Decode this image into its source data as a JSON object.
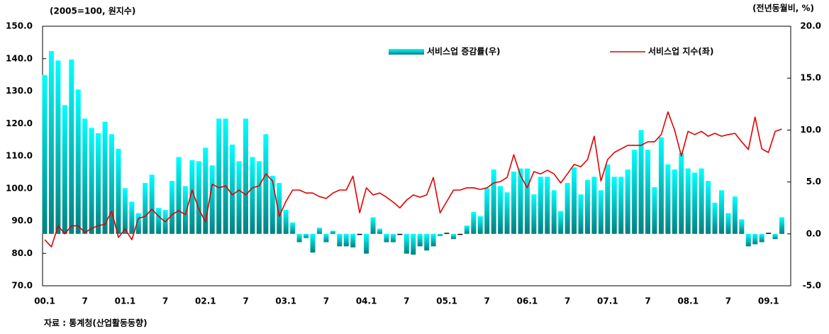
{
  "chart_data": {
    "type": "combo",
    "y_label": "(2005=100, 원지수)",
    "y2_label": "(전년동월비, %)",
    "source": "자료 : 통계청(산업활동동향)",
    "categories": [
      "00.1",
      null,
      null,
      null,
      null,
      null,
      "7",
      null,
      null,
      null,
      null,
      null,
      "01.1",
      null,
      null,
      null,
      null,
      null,
      "7",
      null,
      null,
      null,
      null,
      null,
      "02.1",
      null,
      null,
      null,
      null,
      null,
      "7",
      null,
      null,
      null,
      null,
      null,
      "03.1",
      null,
      null,
      null,
      null,
      null,
      "7",
      null,
      null,
      null,
      null,
      null,
      "04.1",
      null,
      null,
      null,
      null,
      null,
      "7",
      null,
      null,
      null,
      null,
      null,
      "05.1",
      null,
      null,
      null,
      null,
      null,
      "7",
      null,
      null,
      null,
      null,
      null,
      "06.1",
      null,
      null,
      null,
      null,
      null,
      "7",
      null,
      null,
      null,
      null,
      null,
      "07.1",
      null,
      null,
      null,
      null,
      null,
      "7",
      null,
      null,
      null,
      null,
      null,
      "08.1",
      null,
      null,
      null,
      null,
      null,
      "7",
      null,
      null,
      null,
      null,
      null,
      "09.1",
      null,
      null
    ],
    "series": [
      {
        "name": "서비스업 증감률(우)",
        "type": "bar",
        "axis": "y2",
        "color": "#00f0f0",
        "values": [
          15.3,
          17.6,
          16.7,
          12.4,
          16.8,
          13.9,
          11.1,
          10.2,
          9.7,
          10.8,
          9.6,
          8.2,
          4.4,
          3.1,
          2.0,
          4.9,
          5.7,
          2.5,
          2.3,
          5.1,
          7.4,
          4.6,
          7.1,
          7.0,
          8.3,
          6.6,
          11.1,
          11.1,
          8.6,
          7.0,
          11.1,
          7.4,
          7.0,
          9.6,
          5.6,
          4.9,
          2.3,
          1.1,
          -0.8,
          -0.4,
          -1.8,
          0.6,
          -0.8,
          0.3,
          -1.2,
          -1.2,
          -1.3,
          -0.1,
          -1.9,
          1.6,
          0.5,
          -0.8,
          -0.8,
          -0.1,
          -1.9,
          -2.0,
          -1.2,
          -1.6,
          -1.2,
          -0.2,
          0.1,
          -0.5,
          -0.1,
          0.8,
          2.1,
          1.7,
          4.4,
          6.2,
          4.6,
          4.0,
          6.0,
          6.3,
          6.3,
          3.8,
          5.5,
          5.5,
          4.2,
          2.2,
          4.9,
          6.4,
          3.8,
          5.2,
          5.5,
          4.2,
          6.7,
          5.5,
          5.5,
          6.2,
          8.1,
          10.0,
          8.1,
          4.5,
          9.3,
          6.7,
          6.2,
          7.8,
          6.3,
          5.9,
          6.3,
          5.1,
          3.0,
          4.2,
          2.0,
          3.6,
          1.4,
          -1.2,
          -1.0,
          -0.8,
          0.1,
          -0.5,
          1.6
        ]
      },
      {
        "name": "서비스업 지수(좌)",
        "type": "line",
        "axis": "y",
        "color": "#e00000",
        "values": [
          84.2,
          82,
          88.5,
          86,
          88.5,
          88.5,
          86.4,
          87.7,
          88.5,
          89,
          93,
          84.9,
          87.5,
          84.2,
          90.8,
          91.4,
          93.6,
          91.4,
          89.7,
          91.9,
          93.2,
          91.9,
          99.5,
          93.6,
          89.7,
          101.3,
          100.2,
          100.8,
          98,
          99.5,
          98,
          100.2,
          100.8,
          104.5,
          102.3,
          91.4,
          96,
          99.5,
          99.5,
          98.6,
          98.6,
          97.5,
          96.9,
          98.6,
          99.5,
          99.5,
          103.8,
          92.5,
          100.2,
          98,
          98.6,
          97.3,
          95.8,
          94,
          96.4,
          98,
          97.3,
          98,
          103.4,
          92.5,
          96,
          99.5,
          99.5,
          100.2,
          100.2,
          99.7,
          100.2,
          101.7,
          102.1,
          103.4,
          110.4,
          104,
          100.2,
          105.2,
          104.5,
          105.6,
          104.5,
          101.7,
          104.5,
          107.4,
          106.7,
          108.9,
          116.1,
          102.3,
          108.9,
          111.1,
          112.2,
          113.3,
          113.3,
          113.3,
          114.4,
          114.4,
          116.6,
          123.6,
          118,
          110,
          117.6,
          116.6,
          117.6,
          116.1,
          117,
          116.1,
          116.6,
          117,
          114.4,
          112,
          122,
          112.2,
          111.1,
          117.6,
          118.3
        ]
      }
    ],
    "ylim": [
      70,
      150
    ],
    "yticks": [
      {
        "value": 70,
        "label": "70.0"
      },
      {
        "value": 80,
        "label": "80.0"
      },
      {
        "value": 90,
        "label": "90.0"
      },
      {
        "value": 100,
        "label": "100.0"
      },
      {
        "value": 110,
        "label": "110.0"
      },
      {
        "value": 120,
        "label": "120.0"
      },
      {
        "value": 130,
        "label": "130.0"
      },
      {
        "value": 140,
        "label": "140.0"
      },
      {
        "value": 150,
        "label": "150.0"
      }
    ],
    "y2lim": [
      -5,
      20
    ],
    "y2ticks": [
      {
        "value": -5,
        "label": "-5.0"
      },
      {
        "value": 0,
        "label": "0.0"
      },
      {
        "value": 5,
        "label": "5.0"
      },
      {
        "value": 10,
        "label": "10.0"
      },
      {
        "value": 15,
        "label": "15.0"
      },
      {
        "value": 20,
        "label": "20.0"
      }
    ]
  }
}
